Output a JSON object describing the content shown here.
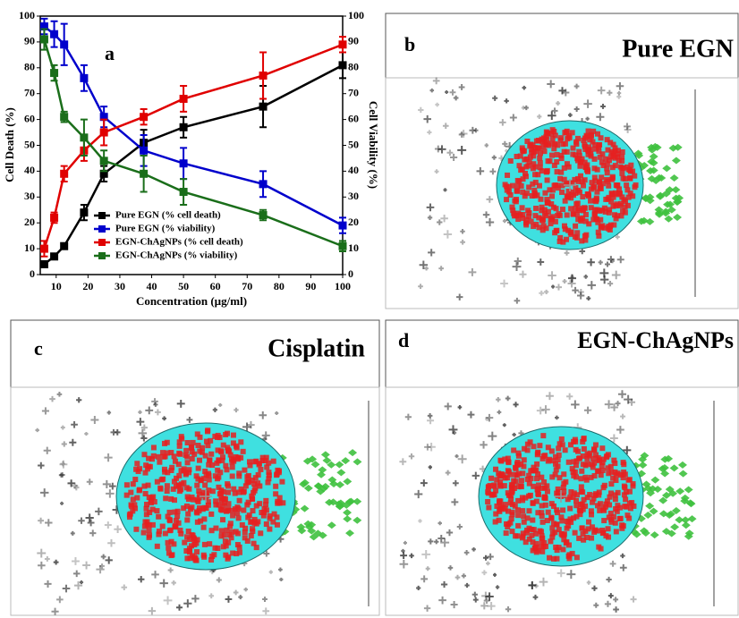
{
  "chart_data": {
    "type": "line",
    "label": "a",
    "xlabel": "Concentration (µg/ml)",
    "ylabel": "Cell Death (%)",
    "y2label": "Cell Viability (%)",
    "x": [
      6.25,
      9.375,
      12.5,
      18.75,
      25,
      37.5,
      50,
      75,
      100
    ],
    "xlim": [
      5,
      100
    ],
    "xticks": [
      10,
      20,
      30,
      40,
      50,
      60,
      70,
      80,
      90,
      100
    ],
    "ylim": [
      0,
      100
    ],
    "yticks": [
      0,
      10,
      20,
      30,
      40,
      50,
      60,
      70,
      80,
      90,
      100
    ],
    "y2lim": [
      0,
      100
    ],
    "y2ticks": [
      0,
      10,
      20,
      30,
      40,
      50,
      60,
      70,
      80,
      90,
      100
    ],
    "legend": "lower left",
    "series": [
      {
        "name": "Pure EGN (% cell death)",
        "color": "#000000",
        "values": [
          4,
          7,
          11,
          24,
          39,
          51,
          57,
          65,
          81
        ],
        "errors": [
          1,
          1,
          1,
          3,
          3,
          5,
          4,
          8,
          5
        ]
      },
      {
        "name": "Pure EGN (% viability)",
        "color": "#0000cc",
        "axis": "y2",
        "values": [
          96,
          93,
          89,
          76,
          61,
          48,
          43,
          35,
          19
        ],
        "errors": [
          3,
          5,
          8,
          5,
          4,
          6,
          6,
          5,
          3
        ]
      },
      {
        "name": "EGN-ChAgNPs (% cell death)",
        "color": "#e00000",
        "values": [
          10,
          22,
          39,
          48,
          55,
          61,
          68,
          77,
          89
        ],
        "errors": [
          3,
          2,
          3,
          4,
          5,
          3,
          5,
          9,
          3
        ]
      },
      {
        "name": "EGN-ChAgNPs (% viability)",
        "color": "#1a6e1a",
        "axis": "y2",
        "values": [
          91,
          78,
          61,
          53,
          44,
          39,
          32,
          23,
          11
        ],
        "errors": [
          4,
          3,
          2,
          7,
          4,
          7,
          5,
          2,
          2
        ]
      }
    ]
  },
  "panels": [
    {
      "label": "b",
      "title": "Pure EGN"
    },
    {
      "label": "c",
      "title": "Cisplatin"
    },
    {
      "label": "d",
      "title": "EGN-ChAgNPs"
    }
  ]
}
